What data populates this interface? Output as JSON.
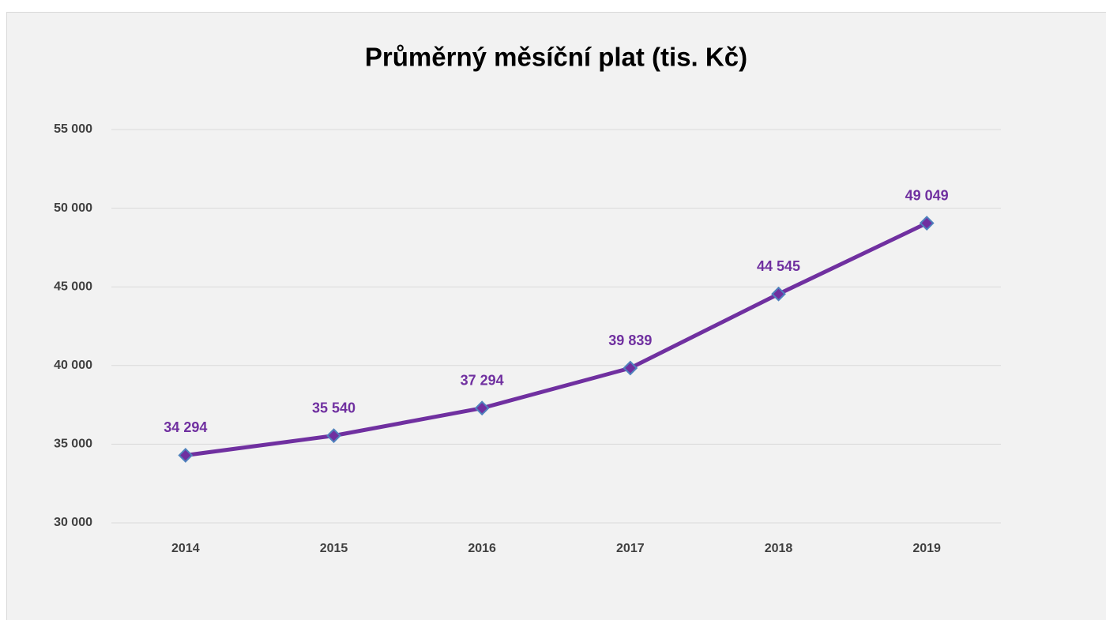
{
  "chart_data": {
    "type": "line",
    "title": "Průměrný měsíční plat (tis. Kč)",
    "categories": [
      "2014",
      "2015",
      "2016",
      "2017",
      "2018",
      "2019"
    ],
    "series": [
      {
        "name": "Průměrný měsíční plat",
        "color": "#7030a0",
        "marker_edge_color": "#4f81bd",
        "values": [
          34294,
          35540,
          37294,
          39839,
          44545,
          49049
        ],
        "value_labels": [
          "34 294",
          "35 540",
          "37 294",
          "39 839",
          "44 545",
          "49 049"
        ]
      }
    ],
    "ylim": [
      30000,
      55000
    ],
    "yticks": [
      {
        "value": 30000,
        "label": "30 000"
      },
      {
        "value": 35000,
        "label": "35 000"
      },
      {
        "value": 40000,
        "label": "40 000"
      },
      {
        "value": 45000,
        "label": "45 000"
      },
      {
        "value": 50000,
        "label": "50 000"
      },
      {
        "value": 55000,
        "label": "55 000"
      }
    ],
    "grid": true
  }
}
